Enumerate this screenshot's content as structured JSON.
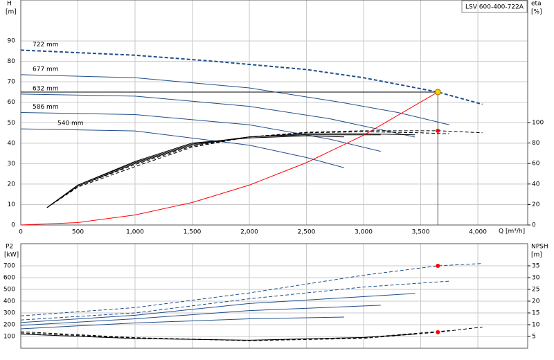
{
  "chart_data": [
    {
      "type": "line",
      "xlabel": "Q [m³/h]",
      "ylabel": "H",
      "yunit": "[m]",
      "y2label": "eta",
      "y2unit": "[%]",
      "box_label": "LSV 600-400-722A",
      "xlim": [
        0,
        4436
      ],
      "ylim": [
        0,
        110
      ],
      "y2lim": [
        0,
        219.6
      ],
      "xticks": [
        0,
        500,
        {
          "value": 1000,
          "label": "1,000"
        },
        {
          "value": 1500,
          "label": "1,500"
        },
        {
          "value": 2000,
          "label": "2,000"
        },
        {
          "value": 2500,
          "label": "2,500"
        },
        {
          "value": 3000,
          "label": "3,000"
        },
        {
          "value": 3500,
          "label": "3,500"
        },
        {
          "value": 4000,
          "label": "4,000"
        }
      ],
      "yticks": [
        0,
        10,
        20,
        30,
        40,
        50,
        60,
        70,
        80,
        90
      ],
      "y2ticks": [
        0,
        20,
        40,
        60,
        80,
        100
      ],
      "grid": true,
      "series": [
        {
          "name": "722 mm",
          "color": "#1f4e8c",
          "style": "dashed",
          "x": [
            0,
            1000,
            1700,
            2500,
            3000,
            3650,
            4040
          ],
          "values": [
            85.5,
            83,
            80,
            76,
            72,
            65,
            59
          ]
        },
        {
          "name": "677 mm",
          "color": "#1f4e8c",
          "style": "solid",
          "x": [
            0,
            1000,
            2000,
            2800,
            3300,
            3750
          ],
          "values": [
            73.5,
            72,
            67,
            60,
            55,
            49
          ]
        },
        {
          "name": "632 mm",
          "color": "#1f4e8c",
          "style": "solid",
          "x": [
            0,
            1000,
            2000,
            2700,
            3450
          ],
          "values": [
            64,
            63,
            58,
            52,
            43
          ]
        },
        {
          "name": "586 mm",
          "color": "#1f4e8c",
          "style": "solid",
          "x": [
            0,
            1000,
            2000,
            2700,
            3150
          ],
          "values": [
            55,
            54,
            49,
            42,
            36
          ]
        },
        {
          "name": "540 mm",
          "color": "#1f4e8c",
          "style": "solid",
          "x": [
            0,
            1000,
            2000,
            2500,
            2830
          ],
          "values": [
            47,
            46,
            39,
            33,
            28
          ]
        },
        {
          "color": "#000000",
          "style": "dashed",
          "axis": "y2",
          "x": [
            230,
            500,
            1000,
            1500,
            2000,
            2500,
            3000,
            3650,
            4040
          ],
          "values": [
            17,
            37,
            57,
            76,
            86,
            90.5,
            92,
            92,
            90
          ]
        },
        {
          "color": "#000000",
          "style": "dashed",
          "axis": "y2",
          "x": [
            230,
            500,
            1000,
            1500,
            2000,
            2500,
            3000,
            3500,
            3750
          ],
          "values": [
            17,
            38,
            59,
            77,
            86,
            90,
            91,
            90,
            89
          ]
        },
        {
          "color": "#000000",
          "style": "solid",
          "axis": "y2",
          "x": [
            230,
            500,
            1000,
            1500,
            2000,
            2500,
            3000,
            3450
          ],
          "values": [
            17,
            38,
            60,
            78,
            86,
            89,
            89,
            88
          ]
        },
        {
          "color": "#000000",
          "style": "solid",
          "axis": "y2",
          "x": [
            230,
            500,
            1000,
            1500,
            2000,
            2500,
            3150
          ],
          "values": [
            17,
            39,
            61,
            79,
            86,
            88,
            88
          ]
        },
        {
          "color": "#000000",
          "style": "solid",
          "axis": "y2",
          "x": [
            230,
            500,
            1000,
            1500,
            2000,
            2500,
            2830
          ],
          "values": [
            17,
            39,
            62,
            80,
            85,
            87,
            86
          ]
        },
        {
          "color": "#ff0000",
          "style": "solid",
          "x": [
            0,
            500,
            1000,
            1500,
            2000,
            2500,
            3000,
            3650
          ],
          "values": [
            0,
            1.2,
            4.9,
            11,
            19.5,
            30.5,
            43.9,
            65
          ]
        }
      ],
      "duty_point": {
        "q": 3650,
        "h": 65,
        "eta": 92,
        "color": "#ffd000",
        "eta_color": "#ff0000"
      }
    },
    {
      "type": "line",
      "ylabel": "P2",
      "yunit": "[kW]",
      "y2label": "NPSH",
      "y2unit": "[m]",
      "xlim": [
        0,
        4436
      ],
      "ylim": [
        0,
        888
      ],
      "y2lim": [
        0,
        44.4
      ],
      "xticks": [
        0,
        500,
        1000,
        1500,
        2000,
        2500,
        3000,
        3500,
        4000
      ],
      "yticks": [
        100,
        200,
        300,
        400,
        500,
        600,
        700
      ],
      "y2ticks": [
        5,
        10,
        15,
        20,
        25,
        30,
        35
      ],
      "grid": true,
      "series": [
        {
          "color": "#1f4e8c",
          "style": "dashed",
          "x": [
            0,
            1000,
            2000,
            3000,
            3650,
            4040
          ],
          "values": [
            275,
            345,
            470,
            620,
            700,
            720
          ]
        },
        {
          "color": "#1f4e8c",
          "style": "dashed",
          "x": [
            0,
            1000,
            2000,
            3000,
            3750
          ],
          "values": [
            240,
            300,
            420,
            520,
            570
          ]
        },
        {
          "color": "#1f4e8c",
          "style": "solid",
          "x": [
            0,
            1000,
            2000,
            3450
          ],
          "values": [
            218,
            280,
            380,
            465
          ]
        },
        {
          "color": "#1f4e8c",
          "style": "solid",
          "x": [
            0,
            1000,
            2000,
            3150
          ],
          "values": [
            194,
            250,
            320,
            365
          ]
        },
        {
          "color": "#1f4e8c",
          "style": "solid",
          "x": [
            0,
            1000,
            2000,
            2830
          ],
          "values": [
            165,
            215,
            250,
            265
          ]
        },
        {
          "color": "#000000",
          "style": "dashed",
          "axis": "y2",
          "x": [
            0,
            1000,
            2000,
            3000,
            3650,
            4040
          ],
          "values": [
            7,
            4.5,
            3.2,
            4.2,
            6.8,
            9
          ]
        },
        {
          "color": "#000000",
          "style": "dashed",
          "axis": "y2",
          "x": [
            0,
            1000,
            2000,
            3000,
            3750
          ],
          "values": [
            6.5,
            4.3,
            3.3,
            4.5,
            7.5
          ]
        },
        {
          "color": "#000000",
          "style": "solid",
          "axis": "y2",
          "x": [
            0,
            1000,
            2000,
            3000,
            3450
          ],
          "values": [
            6,
            4.1,
            3.4,
            4.6,
            6
          ]
        }
      ],
      "duty_point": {
        "q": 3650,
        "p2": 700,
        "npsh": 6.8,
        "color": "#ff0000"
      }
    }
  ]
}
